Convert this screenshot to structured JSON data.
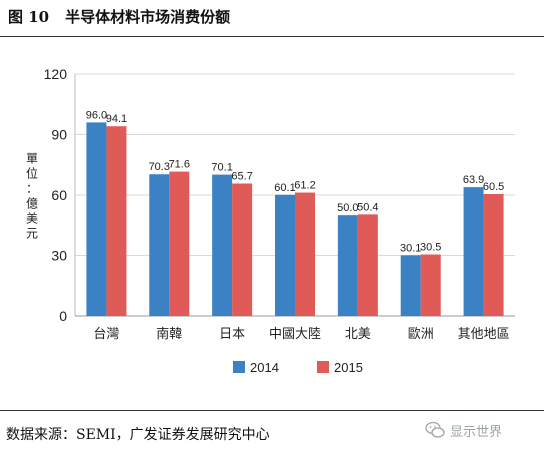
{
  "figure": {
    "number": "图 10",
    "title": "半导体材料市场消费份额"
  },
  "source": "数据来源：SEMI，广发证券发展研究中心",
  "watermark": {
    "text": "显示世界",
    "icon": "wechat-icon"
  },
  "colors": {
    "series_2014": "#3b82c4",
    "series_2015": "#e05a57",
    "grid": "#d9d9d9",
    "plot_bg": "#ffffff"
  },
  "chart_data": {
    "type": "bar",
    "title": "",
    "ylabel": "單位：億美元",
    "ylim": [
      0,
      120
    ],
    "yticks": [
      0,
      30,
      60,
      90,
      120
    ],
    "ytick_labels": [
      "0",
      "30",
      "60",
      "90",
      "120"
    ],
    "grid": true,
    "legend_position": "bottom-center",
    "categories": [
      "台灣",
      "南韓",
      "日本",
      "中國大陸",
      "北美",
      "歐洲",
      "其他地區"
    ],
    "series": [
      {
        "name": "2014",
        "values": [
          96.0,
          70.3,
          70.1,
          60.1,
          50.0,
          30.1,
          63.9
        ],
        "labels": [
          "96.0",
          "70.3",
          "70.1",
          "60.1",
          "50.0",
          "30.1",
          "63.9"
        ]
      },
      {
        "name": "2015",
        "values": [
          94.1,
          71.6,
          65.7,
          61.2,
          50.4,
          30.5,
          60.5
        ],
        "labels": [
          "94.1",
          "71.6",
          "65.7",
          "61.2",
          "50.4",
          "30.5",
          "60.5"
        ]
      }
    ]
  }
}
